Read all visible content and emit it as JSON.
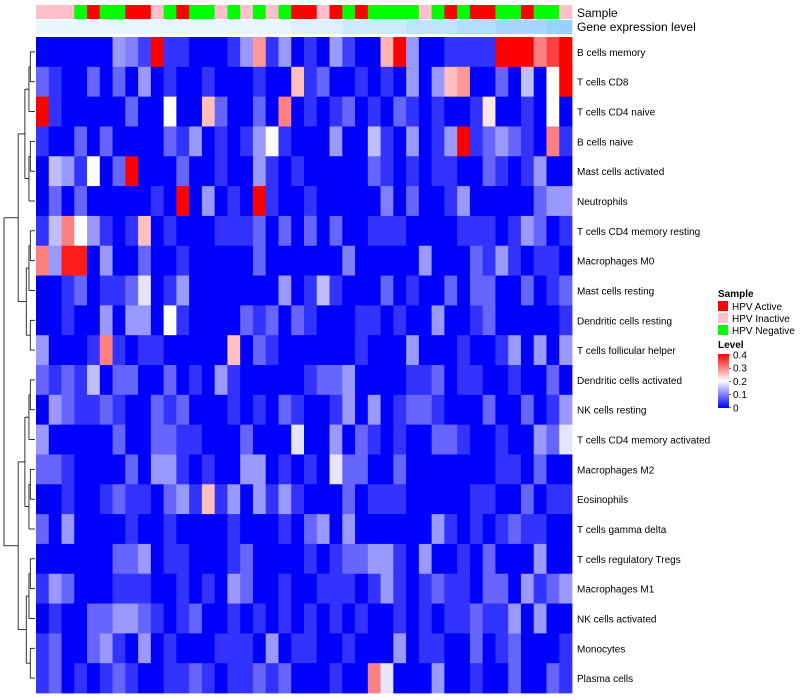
{
  "chart_data": {
    "type": "heatmap",
    "annotation_labels": {
      "sample": "Sample",
      "expression": "Gene expression level"
    },
    "sample_annotation": [
      "HPV Inactive",
      "HPV Inactive",
      "HPV Inactive",
      "HPV Negative",
      "HPV Active",
      "HPV Negative",
      "HPV Negative",
      "HPV Active",
      "HPV Active",
      "HPV Inactive",
      "HPV Negative",
      "HPV Active",
      "HPV Negative",
      "HPV Negative",
      "HPV Inactive",
      "HPV Negative",
      "HPV Inactive",
      "HPV Negative",
      "HPV Inactive",
      "HPV Negative",
      "HPV Active",
      "HPV Active",
      "HPV Inactive",
      "HPV Active",
      "HPV Negative",
      "HPV Active",
      "HPV Negative",
      "HPV Negative",
      "HPV Negative",
      "HPV Negative",
      "HPV Inactive",
      "HPV Negative",
      "HPV Active",
      "HPV Negative",
      "HPV Active",
      "HPV Active",
      "HPV Negative",
      "HPV Negative",
      "HPV Active",
      "HPV Negative",
      "HPV Negative",
      "HPV Inactive"
    ],
    "expression_level": [
      0,
      0,
      0,
      0,
      0,
      0,
      0,
      0,
      0,
      0,
      0,
      0,
      0,
      0,
      0,
      0,
      0,
      0,
      0,
      0,
      0.1,
      0.1,
      0.1,
      0.1,
      0.2,
      0.2,
      0.2,
      0.2,
      0.2,
      0.3,
      0.3,
      0.3,
      0.3,
      0.4,
      0.4,
      0.4,
      0.5,
      0.5,
      0.5,
      0.5,
      0.6,
      0.6
    ],
    "rows": [
      "B cells memory",
      "T cells CD8",
      "T cells CD4 naive",
      "B cells naive",
      "Mast cells activated",
      "Neutrophils",
      "T cells CD4 memory resting",
      "Macrophages M0",
      "Mast cells resting",
      "Dendritic cells resting",
      "T cells follicular helper",
      "Dendritic cells activated",
      "NK cells resting",
      "T cells CD4 memory activated",
      "Macrophages M2",
      "Eosinophils",
      "T cells gamma delta",
      "T cells regulatory  Tregs",
      "Macrophages M1",
      "NK cells activated",
      "Monocytes",
      "Plasma cells"
    ],
    "hot_cells": [
      [
        0,
        9,
        0.42
      ],
      [
        0,
        7,
        0.1
      ],
      [
        0,
        8,
        0.05
      ],
      [
        0,
        17,
        0.28
      ],
      [
        0,
        19,
        0.12
      ],
      [
        0,
        24,
        0.05
      ],
      [
        0,
        28,
        0.42
      ],
      [
        0,
        27,
        0.26
      ],
      [
        0,
        36,
        0.42
      ],
      [
        0,
        37,
        0.42
      ],
      [
        0,
        38,
        0.42
      ],
      [
        0,
        39,
        0.3
      ],
      [
        0,
        40,
        0.35
      ],
      [
        0,
        41,
        0.42
      ],
      [
        0,
        23,
        0.12
      ],
      [
        1,
        40,
        0.2
      ],
      [
        1,
        41,
        0.42
      ],
      [
        1,
        20,
        0.25
      ],
      [
        1,
        32,
        0.25
      ],
      [
        1,
        29,
        0.12
      ],
      [
        1,
        33,
        0.28
      ],
      [
        1,
        38,
        0.15
      ],
      [
        2,
        0,
        0.42
      ],
      [
        2,
        10,
        0.2
      ],
      [
        2,
        13,
        0.25
      ],
      [
        2,
        19,
        0.3
      ],
      [
        2,
        35,
        0.22
      ],
      [
        2,
        40,
        0.2
      ],
      [
        3,
        18,
        0.2
      ],
      [
        3,
        26,
        0.15
      ],
      [
        3,
        33,
        0.42
      ],
      [
        3,
        40,
        0.3
      ],
      [
        4,
        7,
        0.42
      ],
      [
        4,
        4,
        0.2
      ],
      [
        4,
        1,
        0.15
      ],
      [
        4,
        17,
        0.12
      ],
      [
        5,
        11,
        0.42
      ],
      [
        5,
        17,
        0.42
      ],
      [
        5,
        13,
        0.12
      ],
      [
        5,
        27,
        0.1
      ],
      [
        6,
        2,
        0.3
      ],
      [
        6,
        3,
        0.2
      ],
      [
        6,
        8,
        0.25
      ],
      [
        6,
        1,
        0.15
      ],
      [
        7,
        0,
        0.3
      ],
      [
        7,
        2,
        0.38
      ],
      [
        7,
        3,
        0.38
      ],
      [
        7,
        1,
        0.12
      ],
      [
        7,
        24,
        0.1
      ],
      [
        8,
        8,
        0.18
      ],
      [
        8,
        22,
        0.15
      ],
      [
        8,
        19,
        0.12
      ],
      [
        9,
        10,
        0.2
      ],
      [
        9,
        8,
        0.12
      ],
      [
        10,
        5,
        0.3
      ],
      [
        10,
        15,
        0.25
      ],
      [
        11,
        4,
        0.15
      ],
      [
        12,
        1,
        0.12
      ],
      [
        12,
        24,
        0.12
      ],
      [
        13,
        20,
        0.18
      ],
      [
        13,
        41,
        0.18
      ],
      [
        14,
        10,
        0.12
      ],
      [
        14,
        23,
        0.18
      ],
      [
        15,
        13,
        0.25
      ],
      [
        15,
        11,
        0.12
      ],
      [
        21,
        26,
        0.3
      ],
      [
        21,
        27,
        0.18
      ]
    ],
    "legend": {
      "sample_title": "Sample",
      "sample_entries": [
        {
          "label": "HPV Active",
          "color": "#ff0000"
        },
        {
          "label": "HPV Inactive",
          "color": "#ffc0cb"
        },
        {
          "label": "HPV Negative",
          "color": "#00ff00"
        }
      ],
      "level_title": "Level",
      "level_ticks": [
        "0.4",
        "0.3",
        "0.2",
        "0.1",
        "0"
      ],
      "level_range": [
        0,
        0.4
      ]
    },
    "colors": {
      "low": "#0000ff",
      "mid": "#ffffff",
      "high": "#ff0000",
      "expr_low": "#eaf6ff",
      "expr_high": "#63b8ff"
    }
  }
}
